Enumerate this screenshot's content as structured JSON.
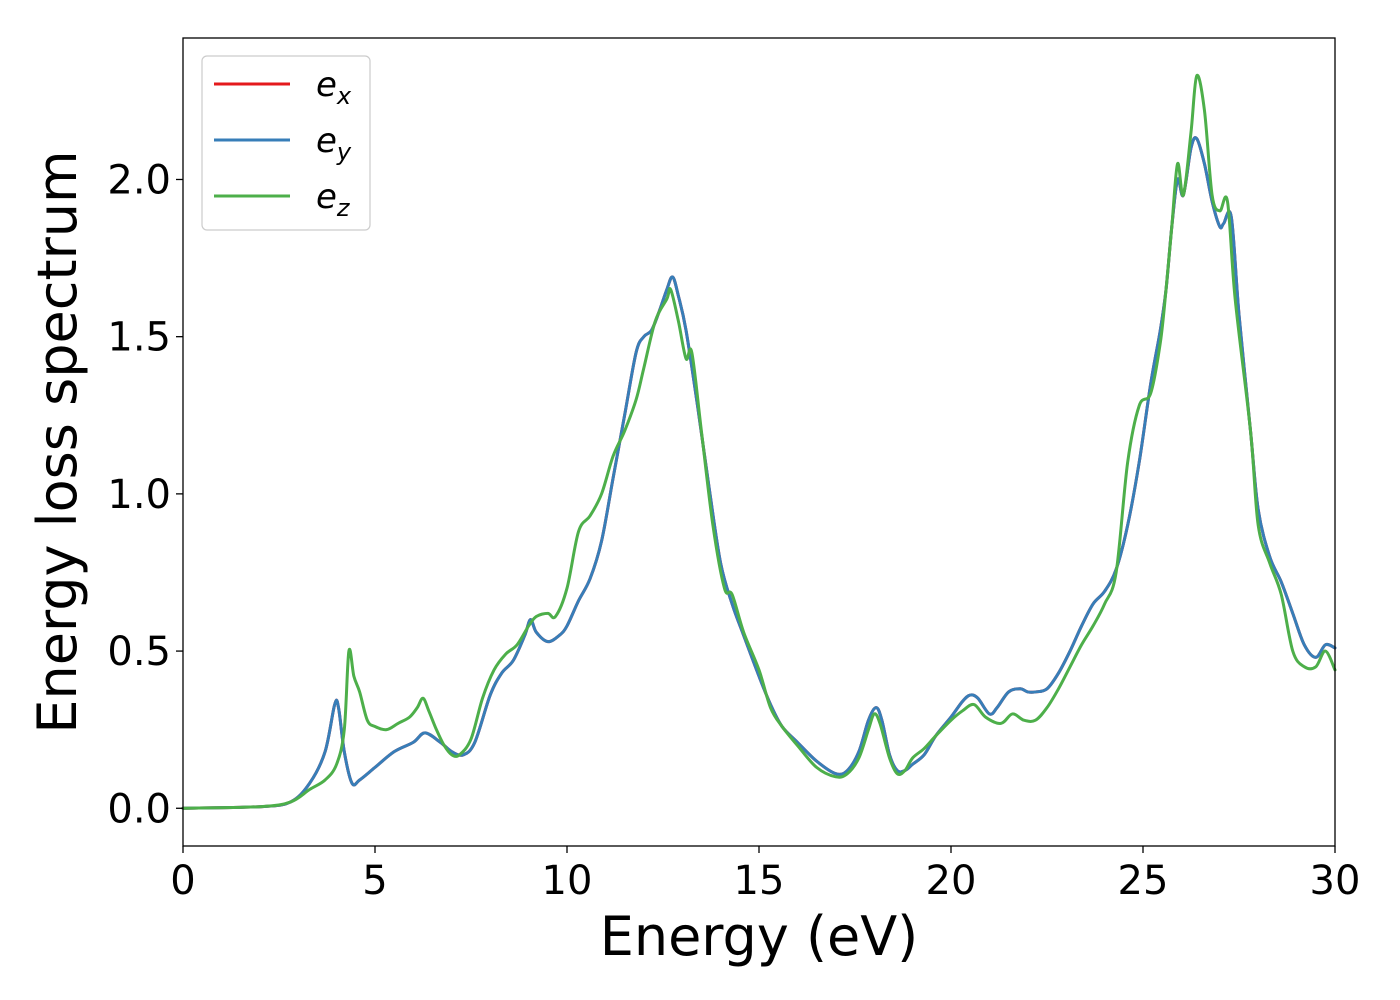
{
  "chart_data": {
    "type": "line",
    "xlabel": "Energy (eV)",
    "ylabel": "Energy loss spectrum",
    "xlim": [
      0,
      30
    ],
    "ylim": [
      -0.12,
      2.45
    ],
    "xticks": [
      0,
      5,
      10,
      15,
      20,
      25,
      30
    ],
    "xtick_labels": [
      "0",
      "5",
      "10",
      "15",
      "20",
      "25",
      "30"
    ],
    "yticks": [
      0.0,
      0.5,
      1.0,
      1.5,
      2.0
    ],
    "ytick_labels": [
      "0.0",
      "0.5",
      "1.0",
      "1.5",
      "2.0"
    ],
    "grid": false,
    "legend_position": "top-left",
    "series": [
      {
        "name": "e_x",
        "legend_base": "e",
        "legend_sub": "x",
        "color": "#e41a1c",
        "x": [
          0,
          2,
          2.8,
          3.3,
          3.7,
          3.95,
          4.05,
          4.2,
          4.4,
          4.6,
          5,
          5.5,
          6,
          6.3,
          6.7,
          7,
          7.3,
          7.6,
          8,
          8.3,
          8.6,
          8.9,
          9.05,
          9.2,
          9.5,
          9.8,
          10,
          10.3,
          10.6,
          10.9,
          11.2,
          11.5,
          11.8,
          12,
          12.2,
          12.4,
          12.6,
          12.75,
          12.9,
          13.1,
          13.4,
          13.7,
          14,
          14.3,
          14.6,
          15,
          15.3,
          15.6,
          16,
          16.5,
          17,
          17.3,
          17.6,
          17.85,
          18.05,
          18.2,
          18.4,
          18.6,
          18.8,
          19,
          19.3,
          19.6,
          20,
          20.3,
          20.5,
          20.7,
          21,
          21.2,
          21.5,
          21.8,
          22,
          22.2,
          22.5,
          22.8,
          23.1,
          23.4,
          23.7,
          24,
          24.3,
          24.6,
          24.9,
          25.2,
          25.45,
          25.6,
          25.75,
          25.9,
          26.05,
          26.25,
          26.4,
          26.6,
          26.8,
          27,
          27.1,
          27.3,
          27.5,
          27.8,
          28,
          28.3,
          28.6,
          28.9,
          29.2,
          29.5,
          29.75,
          30
        ],
        "y": [
          0,
          0.005,
          0.02,
          0.08,
          0.18,
          0.33,
          0.32,
          0.18,
          0.08,
          0.09,
          0.13,
          0.18,
          0.21,
          0.24,
          0.21,
          0.18,
          0.17,
          0.21,
          0.36,
          0.43,
          0.47,
          0.55,
          0.6,
          0.56,
          0.53,
          0.55,
          0.58,
          0.66,
          0.73,
          0.85,
          1.05,
          1.25,
          1.45,
          1.5,
          1.52,
          1.58,
          1.65,
          1.69,
          1.63,
          1.52,
          1.28,
          1.02,
          0.78,
          0.65,
          0.55,
          0.42,
          0.33,
          0.26,
          0.21,
          0.15,
          0.11,
          0.12,
          0.18,
          0.28,
          0.32,
          0.28,
          0.17,
          0.12,
          0.12,
          0.14,
          0.17,
          0.23,
          0.29,
          0.34,
          0.36,
          0.35,
          0.3,
          0.32,
          0.37,
          0.38,
          0.37,
          0.37,
          0.38,
          0.43,
          0.5,
          0.58,
          0.65,
          0.69,
          0.76,
          0.9,
          1.1,
          1.35,
          1.52,
          1.65,
          1.85,
          2.0,
          1.95,
          2.1,
          2.13,
          2.05,
          1.93,
          1.85,
          1.86,
          1.88,
          1.57,
          1.2,
          0.95,
          0.8,
          0.72,
          0.62,
          0.52,
          0.48,
          0.52,
          0.51
        ],
        "note_y_same_as_e_y": true
      },
      {
        "name": "e_y",
        "legend_base": "e",
        "legend_sub": "y",
        "color": "#377eb8",
        "x": [
          0,
          2,
          2.8,
          3.3,
          3.7,
          3.95,
          4.05,
          4.2,
          4.4,
          4.6,
          5,
          5.5,
          6,
          6.3,
          6.7,
          7,
          7.3,
          7.6,
          8,
          8.3,
          8.6,
          8.9,
          9.05,
          9.2,
          9.5,
          9.8,
          10,
          10.3,
          10.6,
          10.9,
          11.2,
          11.5,
          11.8,
          12,
          12.2,
          12.4,
          12.6,
          12.75,
          12.9,
          13.1,
          13.4,
          13.7,
          14,
          14.3,
          14.6,
          15,
          15.3,
          15.6,
          16,
          16.5,
          17,
          17.3,
          17.6,
          17.85,
          18.05,
          18.2,
          18.4,
          18.6,
          18.8,
          19,
          19.3,
          19.6,
          20,
          20.3,
          20.5,
          20.7,
          21,
          21.2,
          21.5,
          21.8,
          22,
          22.2,
          22.5,
          22.8,
          23.1,
          23.4,
          23.7,
          24,
          24.3,
          24.6,
          24.9,
          25.2,
          25.45,
          25.6,
          25.75,
          25.9,
          26.05,
          26.25,
          26.4,
          26.6,
          26.8,
          27,
          27.1,
          27.3,
          27.5,
          27.8,
          28,
          28.3,
          28.6,
          28.9,
          29.2,
          29.5,
          29.75,
          30
        ],
        "y": [
          0,
          0.005,
          0.02,
          0.08,
          0.18,
          0.33,
          0.32,
          0.18,
          0.08,
          0.09,
          0.13,
          0.18,
          0.21,
          0.24,
          0.21,
          0.18,
          0.17,
          0.21,
          0.36,
          0.43,
          0.47,
          0.55,
          0.6,
          0.56,
          0.53,
          0.55,
          0.58,
          0.66,
          0.73,
          0.85,
          1.05,
          1.25,
          1.45,
          1.5,
          1.52,
          1.58,
          1.65,
          1.69,
          1.63,
          1.52,
          1.28,
          1.02,
          0.78,
          0.65,
          0.55,
          0.42,
          0.33,
          0.26,
          0.21,
          0.15,
          0.11,
          0.12,
          0.18,
          0.28,
          0.32,
          0.28,
          0.17,
          0.12,
          0.12,
          0.14,
          0.17,
          0.23,
          0.29,
          0.34,
          0.36,
          0.35,
          0.3,
          0.32,
          0.37,
          0.38,
          0.37,
          0.37,
          0.38,
          0.43,
          0.5,
          0.58,
          0.65,
          0.69,
          0.76,
          0.9,
          1.1,
          1.35,
          1.52,
          1.65,
          1.85,
          2.0,
          1.95,
          2.1,
          2.13,
          2.05,
          1.93,
          1.85,
          1.86,
          1.88,
          1.57,
          1.2,
          0.95,
          0.8,
          0.72,
          0.62,
          0.52,
          0.48,
          0.52,
          0.51
        ]
      },
      {
        "name": "e_z",
        "legend_base": "e",
        "legend_sub": "z",
        "color": "#4daf4a",
        "x": [
          0,
          2,
          2.8,
          3.3,
          3.7,
          4.0,
          4.2,
          4.32,
          4.45,
          4.6,
          4.8,
          5.0,
          5.3,
          5.6,
          5.9,
          6.1,
          6.25,
          6.4,
          6.6,
          6.8,
          7.0,
          7.2,
          7.5,
          7.8,
          8.1,
          8.4,
          8.7,
          9.0,
          9.2,
          9.5,
          9.7,
          10.0,
          10.3,
          10.6,
          10.9,
          11.2,
          11.5,
          11.8,
          12.0,
          12.3,
          12.6,
          12.7,
          12.9,
          13.1,
          13.25,
          13.5,
          13.8,
          14.1,
          14.3,
          14.6,
          15.0,
          15.3,
          15.6,
          16.0,
          16.5,
          17.0,
          17.3,
          17.6,
          17.85,
          18.0,
          18.15,
          18.4,
          18.6,
          18.8,
          19.0,
          19.3,
          19.6,
          20.0,
          20.3,
          20.6,
          20.9,
          21.3,
          21.6,
          21.9,
          22.2,
          22.5,
          22.8,
          23.1,
          23.4,
          23.7,
          24.0,
          24.3,
          24.6,
          24.9,
          25.2,
          25.45,
          25.6,
          25.75,
          25.9,
          26.05,
          26.25,
          26.4,
          26.6,
          26.8,
          27.0,
          27.2,
          27.4,
          27.8,
          28.0,
          28.3,
          28.6,
          28.9,
          29.2,
          29.5,
          29.75,
          30
        ],
        "y": [
          0,
          0.005,
          0.02,
          0.06,
          0.09,
          0.14,
          0.25,
          0.5,
          0.42,
          0.37,
          0.28,
          0.26,
          0.25,
          0.27,
          0.29,
          0.32,
          0.35,
          0.31,
          0.25,
          0.2,
          0.17,
          0.17,
          0.22,
          0.35,
          0.44,
          0.49,
          0.52,
          0.58,
          0.61,
          0.62,
          0.61,
          0.7,
          0.88,
          0.93,
          1.0,
          1.12,
          1.2,
          1.3,
          1.4,
          1.55,
          1.62,
          1.65,
          1.55,
          1.43,
          1.45,
          1.2,
          0.9,
          0.7,
          0.68,
          0.56,
          0.44,
          0.32,
          0.26,
          0.2,
          0.13,
          0.1,
          0.11,
          0.16,
          0.25,
          0.3,
          0.27,
          0.16,
          0.11,
          0.12,
          0.16,
          0.19,
          0.23,
          0.28,
          0.31,
          0.33,
          0.29,
          0.27,
          0.3,
          0.28,
          0.28,
          0.32,
          0.38,
          0.45,
          0.52,
          0.58,
          0.65,
          0.75,
          1.1,
          1.28,
          1.32,
          1.48,
          1.65,
          1.85,
          2.05,
          1.95,
          2.15,
          2.33,
          2.22,
          1.95,
          1.9,
          1.93,
          1.62,
          1.2,
          0.9,
          0.78,
          0.68,
          0.5,
          0.45,
          0.45,
          0.5,
          0.44
        ]
      }
    ]
  }
}
